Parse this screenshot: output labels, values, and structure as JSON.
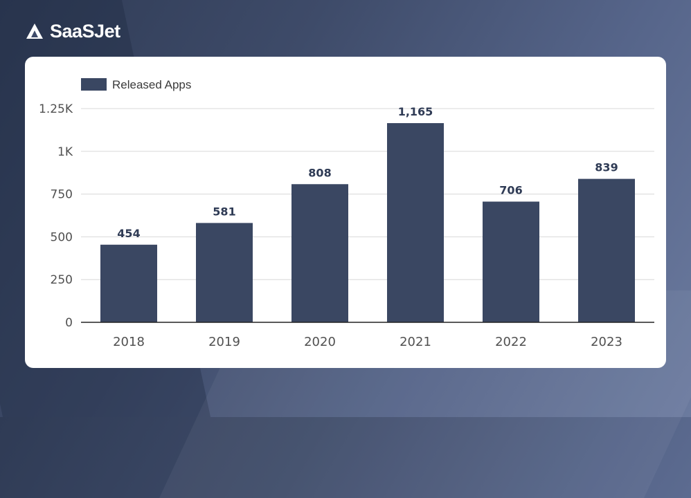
{
  "brand": {
    "name": "SaaSJet",
    "logo_icon": "saasjet-logo-icon",
    "text_color": "#ffffff"
  },
  "colors": {
    "bar": "#3a4762",
    "label": "#2f3b55",
    "background": "#3e4b69"
  },
  "chart_data": {
    "type": "bar",
    "categories": [
      "2018",
      "2019",
      "2020",
      "2021",
      "2022",
      "2023"
    ],
    "series": [
      {
        "name": "Released Apps",
        "values": [
          454,
          581,
          808,
          1165,
          706,
          839
        ]
      }
    ],
    "data_labels": [
      "454",
      "581",
      "808",
      "1,165",
      "706",
      "839"
    ],
    "yticks": [
      0,
      250,
      500,
      750,
      1000,
      1250
    ],
    "ytick_labels": [
      "0",
      "250",
      "500",
      "750",
      "1K",
      "1.25K"
    ],
    "ylim": [
      0,
      1250
    ],
    "grid": true,
    "legend_position": "top-left",
    "title": "",
    "xlabel": "",
    "ylabel": ""
  }
}
